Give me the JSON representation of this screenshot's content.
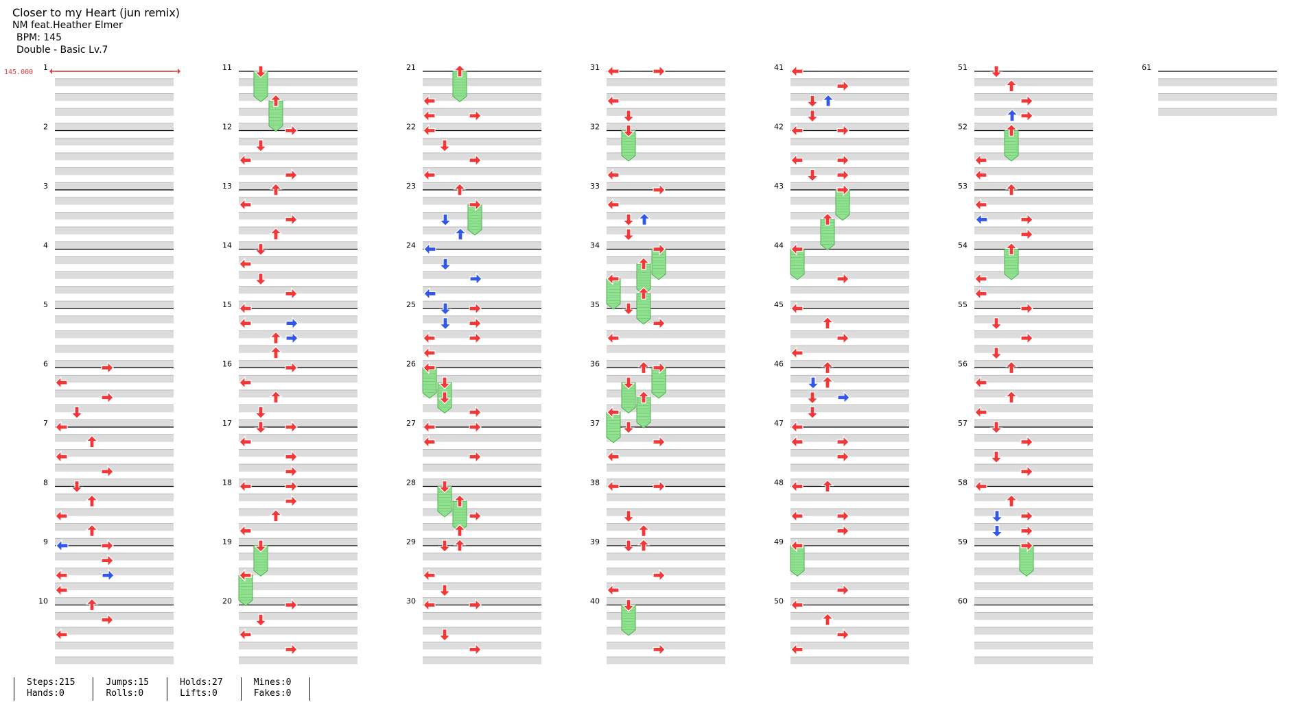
{
  "song": {
    "title": "Closer to my Heart (jun remix)",
    "artist": "NM feat.Heather Elmer",
    "bpm_label": "BPM: 145",
    "difficulty_label": "Double - Basic Lv.7"
  },
  "bpm_marker": "145.000",
  "measures": {
    "first": 1,
    "last": 61,
    "per_column": 10
  },
  "colors": {
    "note": "#f03838",
    "note_alt": "#3357e6",
    "hold": "#8fe08f",
    "hold_border": "#4fae4f",
    "marker": "#e43b3b",
    "band": "#dcdcdc"
  },
  "stats": {
    "steps": "Steps:215",
    "hands": "Hands:0",
    "jumps": "Jumps:15",
    "rolls": "Rolls:0",
    "holds": "Holds:27",
    "lifts": "Lifts:0",
    "mines": "Mines:0",
    "fakes": "Fakes:0"
  },
  "notes": [
    {
      "m": 6,
      "r": 0,
      "d": "R"
    },
    {
      "m": 6,
      "r": 1,
      "d": "L"
    },
    {
      "m": 6,
      "r": 2,
      "d": "R"
    },
    {
      "m": 6,
      "r": 3,
      "d": "D"
    },
    {
      "m": 7,
      "r": 0,
      "d": "L"
    },
    {
      "m": 7,
      "r": 1,
      "d": "U"
    },
    {
      "m": 7,
      "r": 2,
      "d": "L"
    },
    {
      "m": 7,
      "r": 3,
      "d": "R"
    },
    {
      "m": 8,
      "r": 0,
      "d": "D"
    },
    {
      "m": 8,
      "r": 1,
      "d": "U"
    },
    {
      "m": 8,
      "r": 2,
      "d": "L"
    },
    {
      "m": 8,
      "r": 3,
      "d": "U"
    },
    {
      "m": 9,
      "r": 0,
      "d": "R"
    },
    {
      "m": 9,
      "r": 0,
      "d": "L",
      "b": 1
    },
    {
      "m": 9,
      "r": 1,
      "d": "R"
    },
    {
      "m": 9,
      "r": 2,
      "d": "R",
      "b": 1
    },
    {
      "m": 9,
      "r": 2,
      "d": "L"
    },
    {
      "m": 9,
      "r": 3,
      "d": "L"
    },
    {
      "m": 10,
      "r": 0,
      "d": "U"
    },
    {
      "m": 10,
      "r": 1,
      "d": "R"
    },
    {
      "m": 10,
      "r": 2,
      "d": "L"
    },
    {
      "m": 11,
      "r": 0,
      "d": "D",
      "h": 1
    },
    {
      "m": 11,
      "r": 2,
      "d": "U",
      "h": 1
    },
    {
      "m": 12,
      "r": 0,
      "d": "R"
    },
    {
      "m": 12,
      "r": 1,
      "d": "D"
    },
    {
      "m": 12,
      "r": 2,
      "d": "L"
    },
    {
      "m": 12,
      "r": 3,
      "d": "R"
    },
    {
      "m": 13,
      "r": 0,
      "d": "U"
    },
    {
      "m": 13,
      "r": 1,
      "d": "L"
    },
    {
      "m": 13,
      "r": 2,
      "d": "R"
    },
    {
      "m": 13,
      "r": 3,
      "d": "U"
    },
    {
      "m": 14,
      "r": 0,
      "d": "D"
    },
    {
      "m": 14,
      "r": 1,
      "d": "L"
    },
    {
      "m": 14,
      "r": 2,
      "d": "D"
    },
    {
      "m": 14,
      "r": 3,
      "d": "R"
    },
    {
      "m": 15,
      "r": 0,
      "d": "L"
    },
    {
      "m": 15,
      "r": 1,
      "d": "R",
      "b": 1
    },
    {
      "m": 15,
      "r": 1,
      "d": "L"
    },
    {
      "m": 15,
      "r": 2,
      "d": "U"
    },
    {
      "m": 15,
      "r": 2,
      "d": "R",
      "b": 1
    },
    {
      "m": 15,
      "r": 3,
      "d": "U"
    },
    {
      "m": 16,
      "r": 0,
      "d": "R"
    },
    {
      "m": 16,
      "r": 1,
      "d": "L"
    },
    {
      "m": 16,
      "r": 2,
      "d": "U"
    },
    {
      "m": 16,
      "r": 3,
      "d": "D"
    },
    {
      "m": 17,
      "r": 0,
      "d": "D"
    },
    {
      "m": 17,
      "r": 0,
      "d": "R"
    },
    {
      "m": 17,
      "r": 1,
      "d": "L"
    },
    {
      "m": 17,
      "r": 2,
      "d": "R"
    },
    {
      "m": 17,
      "r": 3,
      "d": "R"
    },
    {
      "m": 18,
      "r": 0,
      "d": "R"
    },
    {
      "m": 18,
      "r": 0,
      "d": "L"
    },
    {
      "m": 18,
      "r": 1,
      "d": "R"
    },
    {
      "m": 18,
      "r": 2,
      "d": "U"
    },
    {
      "m": 18,
      "r": 3,
      "d": "L"
    },
    {
      "m": 19,
      "r": 0,
      "d": "D",
      "h": 1
    },
    {
      "m": 19,
      "r": 2,
      "d": "L",
      "h": 1
    },
    {
      "m": 20,
      "r": 0,
      "d": "R"
    },
    {
      "m": 20,
      "r": 1,
      "d": "D"
    },
    {
      "m": 20,
      "r": 2,
      "d": "L"
    },
    {
      "m": 20,
      "r": 3,
      "d": "R"
    },
    {
      "m": 21,
      "r": 0,
      "d": "U",
      "h": 1
    },
    {
      "m": 21,
      "r": 2,
      "d": "L"
    },
    {
      "m": 21,
      "r": 3,
      "d": "L"
    },
    {
      "m": 21,
      "r": 3,
      "d": "R"
    },
    {
      "m": 22,
      "r": 0,
      "d": "L"
    },
    {
      "m": 22,
      "r": 1,
      "d": "D"
    },
    {
      "m": 22,
      "r": 2,
      "d": "R"
    },
    {
      "m": 22,
      "r": 3,
      "d": "L"
    },
    {
      "m": 23,
      "r": 0,
      "d": "U"
    },
    {
      "m": 23,
      "r": 1,
      "d": "R",
      "h": 1
    },
    {
      "m": 23,
      "r": 2,
      "d": "D",
      "b": 1
    },
    {
      "m": 23,
      "r": 3,
      "d": "U",
      "b": 1
    },
    {
      "m": 24,
      "r": 0,
      "d": "L",
      "b": 1
    },
    {
      "m": 24,
      "r": 1,
      "d": "D",
      "b": 1
    },
    {
      "m": 24,
      "r": 2,
      "d": "R",
      "b": 1
    },
    {
      "m": 24,
      "r": 3,
      "d": "L",
      "b": 1
    },
    {
      "m": 25,
      "r": 0,
      "d": "D",
      "b": 1
    },
    {
      "m": 25,
      "r": 0,
      "d": "R"
    },
    {
      "m": 25,
      "r": 1,
      "d": "D",
      "b": 1
    },
    {
      "m": 25,
      "r": 1,
      "d": "R"
    },
    {
      "m": 25,
      "r": 2,
      "d": "L"
    },
    {
      "m": 25,
      "r": 2,
      "d": "R"
    },
    {
      "m": 25,
      "r": 3,
      "d": "L"
    },
    {
      "m": 26,
      "r": 0,
      "d": "L",
      "h": 1
    },
    {
      "m": 26,
      "r": 1,
      "d": "D",
      "h": 1
    },
    {
      "m": 26,
      "r": 2,
      "d": "D"
    },
    {
      "m": 26,
      "r": 3,
      "d": "R"
    },
    {
      "m": 27,
      "r": 0,
      "d": "R"
    },
    {
      "m": 27,
      "r": 0,
      "d": "L"
    },
    {
      "m": 27,
      "r": 1,
      "d": "L"
    },
    {
      "m": 27,
      "r": 2,
      "d": "R"
    },
    {
      "m": 28,
      "r": 0,
      "d": "D",
      "h": 1
    },
    {
      "m": 28,
      "r": 1,
      "d": "U",
      "h": 1
    },
    {
      "m": 28,
      "r": 2,
      "d": "R"
    },
    {
      "m": 28,
      "r": 3,
      "d": "U"
    },
    {
      "m": 29,
      "r": 0,
      "d": "D"
    },
    {
      "m": 29,
      "r": 0,
      "d": "U"
    },
    {
      "m": 29,
      "r": 2,
      "d": "L"
    },
    {
      "m": 29,
      "r": 3,
      "d": "D"
    },
    {
      "m": 30,
      "r": 0,
      "d": "R"
    },
    {
      "m": 30,
      "r": 0,
      "d": "L"
    },
    {
      "m": 30,
      "r": 2,
      "d": "D"
    },
    {
      "m": 30,
      "r": 3,
      "d": "R"
    },
    {
      "m": 31,
      "r": 0,
      "d": "L"
    },
    {
      "m": 31,
      "r": 0,
      "d": "R"
    },
    {
      "m": 31,
      "r": 2,
      "d": "L"
    },
    {
      "m": 31,
      "r": 3,
      "d": "D"
    },
    {
      "m": 32,
      "r": 0,
      "d": "D",
      "h": 1
    },
    {
      "m": 32,
      "r": 3,
      "d": "L"
    },
    {
      "m": 33,
      "r": 0,
      "d": "R"
    },
    {
      "m": 33,
      "r": 1,
      "d": "L"
    },
    {
      "m": 33,
      "r": 2,
      "d": "D"
    },
    {
      "m": 33,
      "r": 2,
      "d": "U",
      "b": 1
    },
    {
      "m": 33,
      "r": 3,
      "d": "D"
    },
    {
      "m": 34,
      "r": 0,
      "d": "R",
      "h": 1
    },
    {
      "m": 34,
      "r": 1,
      "d": "U",
      "h": 1
    },
    {
      "m": 34,
      "r": 2,
      "d": "L",
      "h": 1
    },
    {
      "m": 34,
      "r": 3,
      "d": "U",
      "h": 1
    },
    {
      "m": 35,
      "r": 0,
      "d": "D"
    },
    {
      "m": 35,
      "r": 1,
      "d": "R"
    },
    {
      "m": 35,
      "r": 2,
      "d": "L"
    },
    {
      "m": 36,
      "r": 0,
      "d": "U"
    },
    {
      "m": 36,
      "r": 0,
      "d": "R",
      "h": 1
    },
    {
      "m": 36,
      "r": 1,
      "d": "D",
      "h": 1
    },
    {
      "m": 36,
      "r": 2,
      "d": "U",
      "h": 1
    },
    {
      "m": 36,
      "r": 3,
      "d": "L",
      "h": 1
    },
    {
      "m": 37,
      "r": 0,
      "d": "D"
    },
    {
      "m": 37,
      "r": 1,
      "d": "R"
    },
    {
      "m": 37,
      "r": 2,
      "d": "L"
    },
    {
      "m": 38,
      "r": 0,
      "d": "R"
    },
    {
      "m": 38,
      "r": 0,
      "d": "L"
    },
    {
      "m": 38,
      "r": 2,
      "d": "D"
    },
    {
      "m": 38,
      "r": 3,
      "d": "U"
    },
    {
      "m": 39,
      "r": 0,
      "d": "D"
    },
    {
      "m": 39,
      "r": 0,
      "d": "U"
    },
    {
      "m": 39,
      "r": 2,
      "d": "R"
    },
    {
      "m": 39,
      "r": 3,
      "d": "L"
    },
    {
      "m": 40,
      "r": 0,
      "d": "D",
      "h": 1
    },
    {
      "m": 40,
      "r": 3,
      "d": "R"
    },
    {
      "m": 41,
      "r": 0,
      "d": "L"
    },
    {
      "m": 41,
      "r": 1,
      "d": "R"
    },
    {
      "m": 41,
      "r": 2,
      "d": "D"
    },
    {
      "m": 41,
      "r": 2,
      "d": "U",
      "b": 1
    },
    {
      "m": 41,
      "r": 3,
      "d": "D"
    },
    {
      "m": 42,
      "r": 0,
      "d": "L"
    },
    {
      "m": 42,
      "r": 0,
      "d": "R"
    },
    {
      "m": 42,
      "r": 2,
      "d": "R"
    },
    {
      "m": 42,
      "r": 2,
      "d": "L"
    },
    {
      "m": 42,
      "r": 3,
      "d": "R"
    },
    {
      "m": 42,
      "r": 3,
      "d": "D"
    },
    {
      "m": 43,
      "r": 0,
      "d": "R",
      "h": 1
    },
    {
      "m": 43,
      "r": 2,
      "d": "U",
      "h": 1
    },
    {
      "m": 44,
      "r": 0,
      "d": "L",
      "h": 1
    },
    {
      "m": 44,
      "r": 2,
      "d": "R"
    },
    {
      "m": 45,
      "r": 0,
      "d": "L"
    },
    {
      "m": 45,
      "r": 1,
      "d": "U"
    },
    {
      "m": 45,
      "r": 2,
      "d": "R"
    },
    {
      "m": 45,
      "r": 3,
      "d": "L"
    },
    {
      "m": 46,
      "r": 0,
      "d": "U"
    },
    {
      "m": 46,
      "r": 1,
      "d": "D",
      "b": 1
    },
    {
      "m": 46,
      "r": 1,
      "d": "U"
    },
    {
      "m": 46,
      "r": 2,
      "d": "D"
    },
    {
      "m": 46,
      "r": 2,
      "d": "R",
      "b": 1
    },
    {
      "m": 46,
      "r": 3,
      "d": "D"
    },
    {
      "m": 47,
      "r": 0,
      "d": "L"
    },
    {
      "m": 47,
      "r": 1,
      "d": "R"
    },
    {
      "m": 47,
      "r": 1,
      "d": "L"
    },
    {
      "m": 47,
      "r": 2,
      "d": "R"
    },
    {
      "m": 48,
      "r": 0,
      "d": "U"
    },
    {
      "m": 48,
      "r": 0,
      "d": "L"
    },
    {
      "m": 48,
      "r": 2,
      "d": "L"
    },
    {
      "m": 48,
      "r": 2,
      "d": "R"
    },
    {
      "m": 48,
      "r": 3,
      "d": "R"
    },
    {
      "m": 49,
      "r": 0,
      "d": "L",
      "h": 1
    },
    {
      "m": 49,
      "r": 3,
      "d": "R"
    },
    {
      "m": 50,
      "r": 0,
      "d": "L"
    },
    {
      "m": 50,
      "r": 1,
      "d": "U"
    },
    {
      "m": 50,
      "r": 2,
      "d": "R"
    },
    {
      "m": 50,
      "r": 3,
      "d": "L"
    },
    {
      "m": 51,
      "r": 0,
      "d": "D"
    },
    {
      "m": 51,
      "r": 1,
      "d": "U"
    },
    {
      "m": 51,
      "r": 2,
      "d": "R"
    },
    {
      "m": 51,
      "r": 3,
      "d": "U",
      "b": 1
    },
    {
      "m": 51,
      "r": 3,
      "d": "R"
    },
    {
      "m": 52,
      "r": 0,
      "d": "U",
      "h": 1
    },
    {
      "m": 52,
      "r": 2,
      "d": "L"
    },
    {
      "m": 52,
      "r": 3,
      "d": "L"
    },
    {
      "m": 53,
      "r": 0,
      "d": "U"
    },
    {
      "m": 53,
      "r": 1,
      "d": "L"
    },
    {
      "m": 53,
      "r": 2,
      "d": "R"
    },
    {
      "m": 53,
      "r": 2,
      "d": "L",
      "b": 1
    },
    {
      "m": 53,
      "r": 3,
      "d": "R"
    },
    {
      "m": 54,
      "r": 0,
      "d": "U",
      "h": 1
    },
    {
      "m": 54,
      "r": 2,
      "d": "L"
    },
    {
      "m": 54,
      "r": 3,
      "d": "L"
    },
    {
      "m": 55,
      "r": 0,
      "d": "R"
    },
    {
      "m": 55,
      "r": 1,
      "d": "D"
    },
    {
      "m": 55,
      "r": 2,
      "d": "R"
    },
    {
      "m": 55,
      "r": 3,
      "d": "D"
    },
    {
      "m": 56,
      "r": 0,
      "d": "U"
    },
    {
      "m": 56,
      "r": 1,
      "d": "L"
    },
    {
      "m": 56,
      "r": 2,
      "d": "U"
    },
    {
      "m": 56,
      "r": 3,
      "d": "L"
    },
    {
      "m": 57,
      "r": 0,
      "d": "D"
    },
    {
      "m": 57,
      "r": 1,
      "d": "R"
    },
    {
      "m": 57,
      "r": 2,
      "d": "D"
    },
    {
      "m": 57,
      "r": 3,
      "d": "R"
    },
    {
      "m": 58,
      "r": 0,
      "d": "L"
    },
    {
      "m": 58,
      "r": 1,
      "d": "U"
    },
    {
      "m": 58,
      "r": 2,
      "d": "R"
    },
    {
      "m": 58,
      "r": 2,
      "d": "D",
      "b": 1
    },
    {
      "m": 58,
      "r": 3,
      "d": "R"
    },
    {
      "m": 58,
      "r": 3,
      "d": "D",
      "b": 1
    },
    {
      "m": 59,
      "r": 0,
      "d": "R",
      "h": 1
    }
  ]
}
